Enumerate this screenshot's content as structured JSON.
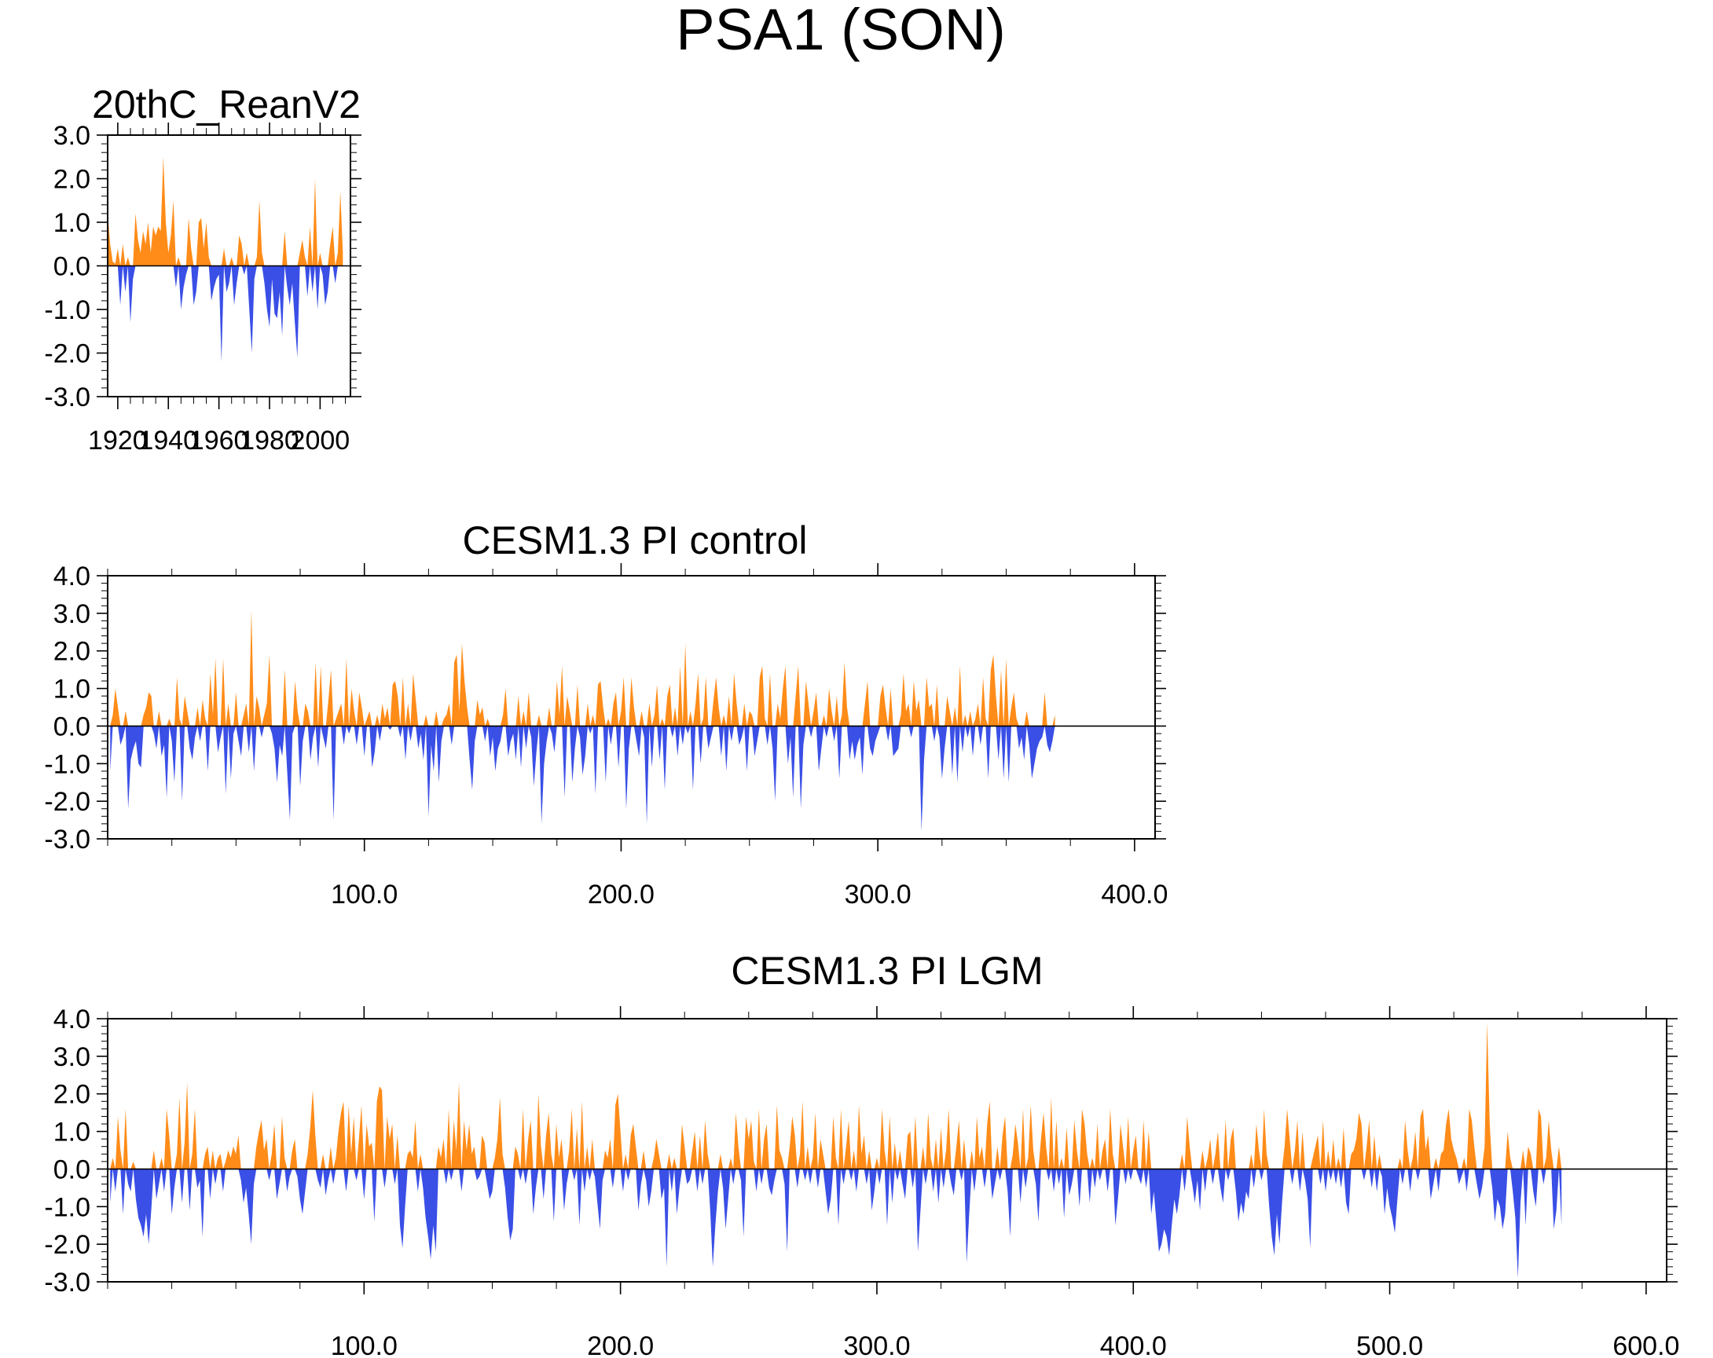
{
  "title": "PSA1 (SON)",
  "colors": {
    "positive": "#ff8c19",
    "negative": "#3a4fe6",
    "axis": "#000000"
  },
  "chart_data": [
    {
      "type": "area",
      "title": "20thC_ReanV2",
      "xlim": [
        1916,
        2012
      ],
      "ylim": [
        -3.0,
        3.0
      ],
      "xticks": [
        1920,
        1940,
        1960,
        1980,
        2000
      ],
      "xtick_labels": [
        "1920",
        "1940",
        "1960",
        "1980",
        "2000"
      ],
      "yticks": [
        -3.0,
        -2.0,
        -1.0,
        0.0,
        1.0,
        2.0,
        3.0
      ],
      "ytick_labels": [
        "-3.0",
        "-2.0",
        "-1.0",
        "0.0",
        "1.0",
        "2.0",
        "3.0"
      ],
      "x_start": 1916,
      "x_step": 1,
      "values": [
        1.2,
        0.5,
        0.1,
        0.05,
        0.4,
        -0.9,
        0.5,
        -0.6,
        0.2,
        -1.3,
        -0.3,
        1.2,
        0.6,
        0.3,
        0.8,
        0.5,
        1.0,
        0.3,
        0.9,
        0.7,
        0.9,
        0.8,
        2.5,
        1.0,
        0.3,
        0.7,
        1.5,
        -0.5,
        0.2,
        -1.0,
        -0.5,
        -0.2,
        1.1,
        0.4,
        -0.9,
        -0.6,
        1.0,
        1.1,
        0.4,
        1.0,
        0.2,
        -0.8,
        -0.5,
        -0.3,
        -0.2,
        -2.2,
        0.4,
        -0.6,
        -0.4,
        0.2,
        -0.9,
        -0.4,
        0.7,
        0.5,
        -0.2,
        0.3,
        -1.0,
        -2.0,
        -0.3,
        0.2,
        1.5,
        0.3,
        -0.4,
        -1.0,
        -1.4,
        -0.3,
        -1.1,
        -1.2,
        -0.6,
        -1.6,
        0.8,
        -0.5,
        -0.9,
        -0.4,
        -1.3,
        -2.1,
        0.3,
        0.6,
        0.2,
        -0.7,
        0.9,
        -0.6,
        2.0,
        -1.0,
        0.3,
        -0.2,
        -0.9,
        -0.6,
        0.5,
        0.9,
        -0.4,
        0.3,
        1.7,
        0.3
      ]
    },
    {
      "type": "area",
      "title": "CESM1.3 PI control",
      "xlim": [
        0,
        408
      ],
      "ylim": [
        -3.0,
        4.0
      ],
      "xticks": [
        100,
        200,
        300,
        400
      ],
      "xtick_labels": [
        "100.0",
        "200.0",
        "300.0",
        "400.0"
      ],
      "yticks": [
        -3.0,
        -2.0,
        -1.0,
        0.0,
        1.0,
        2.0,
        3.0,
        4.0
      ],
      "ytick_labels": [
        "-3.0",
        "-2.0",
        "-1.0",
        "0.0",
        "1.0",
        "2.0",
        "3.0",
        "4.0"
      ],
      "x_start": 1,
      "x_step": 1,
      "values": [
        -1.2,
        0.3,
        1.0,
        0.5,
        -0.5,
        -0.3,
        0.4,
        -2.2,
        -0.9,
        -0.6,
        -0.4,
        -1.0,
        -1.1,
        0.3,
        0.5,
        0.9,
        0.8,
        -0.2,
        -0.6,
        0.4,
        -0.8,
        -0.5,
        -1.9,
        0.2,
        -0.4,
        -1.5,
        1.3,
        0.2,
        -2.0,
        0.8,
        0.4,
        -0.6,
        -0.9,
        -0.3,
        0.5,
        -0.4,
        0.7,
        0.2,
        -1.2,
        1.4,
        0.3,
        1.8,
        -0.7,
        -0.3,
        1.8,
        -1.8,
        0.6,
        -1.4,
        -0.2,
        0.9,
        -0.4,
        -0.8,
        0.3,
        0.6,
        -0.7,
        3.1,
        -1.2,
        0.8,
        0.5,
        -0.3,
        0.3,
        0.6,
        1.9,
        -0.2,
        -0.6,
        -1.5,
        -0.5,
        -0.8,
        1.5,
        -1.3,
        -2.5,
        -0.2,
        1.2,
        0.4,
        -1.6,
        -0.4,
        0.6,
        0.4,
        -0.9,
        -0.3,
        1.7,
        -1.1,
        1.6,
        -0.3,
        -0.6,
        0.7,
        1.5,
        -2.5,
        0.2,
        0.4,
        0.6,
        -0.5,
        1.8,
        -0.2,
        1.0,
        0.4,
        -0.5,
        0.9,
        0.5,
        -0.8,
        0.2,
        0.4,
        -1.1,
        -0.7,
        0.3,
        -0.4,
        0.6,
        0.2,
        0.5,
        -0.1,
        1.1,
        1.2,
        0.8,
        -0.3,
        1.3,
        -0.9,
        0.6,
        -0.4,
        1.4,
        0.7,
        -0.6,
        -0.2,
        -0.9,
        0.3,
        -2.4,
        -0.5,
        -1.2,
        0.4,
        -1.5,
        -0.4,
        0.2,
        0.3,
        0.6,
        -0.5,
        1.7,
        1.9,
        0.4,
        2.2,
        1.2,
        0.5,
        -0.9,
        -1.7,
        -0.4,
        0.7,
        0.3,
        0.5,
        -0.4,
        0.2,
        -0.8,
        -0.3,
        -1.2,
        -0.6,
        -0.4,
        0.3,
        1.0,
        -0.8,
        -0.4,
        -0.2,
        -0.9,
        0.8,
        -1.1,
        0.4,
        -0.6,
        0.9,
        -0.3,
        -1.6,
        -0.7,
        0.3,
        -2.6,
        -1.0,
        -0.4,
        0.5,
        -0.2,
        -0.7,
        1.2,
        0.3,
        1.6,
        -1.9,
        0.8,
        0.4,
        -1.5,
        -0.6,
        1.1,
        -0.3,
        -1.3,
        -0.8,
        0.6,
        -0.2,
        0.3,
        -1.8,
        1.1,
        1.2,
        0.5,
        -1.5,
        0.2,
        -0.5,
        0.6,
        0.9,
        -1.1,
        0.4,
        1.3,
        -2.2,
        -0.6,
        1.3,
        0.5,
        -0.4,
        -0.8,
        0.4,
        -0.3,
        -2.6,
        0.6,
        -1.1,
        0.3,
        1.1,
        -0.9,
        0.2,
        -1.7,
        0.8,
        1.1,
        -0.3,
        0.5,
        -0.8,
        1.6,
        -0.5,
        2.2,
        -0.2,
        0.4,
        -1.7,
        0.6,
        1.4,
        -1.0,
        0.2,
        1.3,
        -0.6,
        -0.3,
        0.7,
        1.3,
        0.5,
        -0.8,
        0.3,
        -1.2,
        0.8,
        -0.4,
        1.4,
        0.6,
        -0.5,
        -0.3,
        0.6,
        -1.2,
        0.4,
        0.3,
        -0.8,
        -0.4,
        1.3,
        1.6,
        0.2,
        -0.5,
        1.4,
        -0.6,
        -2.0,
        0.6,
        0.2,
        1.0,
        1.6,
        -1.0,
        -0.3,
        -1.9,
        0.8,
        1.6,
        -2.2,
        -0.5,
        1.2,
        0.6,
        -0.3,
        0.4,
        0.9,
        -1.2,
        -0.6,
        0.3,
        -0.3,
        1.0,
        0.4,
        -0.4,
        0.8,
        -1.4,
        0.3,
        1.7,
        0.5,
        -0.9,
        -0.4,
        -0.9,
        -0.5,
        -0.3,
        -1.3,
        0.6,
        1.2,
        -0.6,
        -0.8,
        -0.4,
        -0.2,
        0.8,
        1.1,
        0.5,
        -0.4,
        1.0,
        -0.8,
        -0.7,
        -0.6,
        0.3,
        1.4,
        0.4,
        0.6,
        -0.3,
        1.2,
        0.4,
        0.7,
        -2.8,
        -0.9,
        1.3,
        0.5,
        0.6,
        -0.4,
        1.1,
        -0.3,
        -1.4,
        -0.6,
        0.8,
        0.4,
        -1.3,
        0.5,
        -1.5,
        1.6,
        -0.7,
        0.3,
        -0.3,
        0.4,
        -0.8,
        0.2,
        0.6,
        -0.5,
        1.3,
        0.2,
        -1.4,
        1.5,
        1.9,
        0.8,
        -0.9,
        1.5,
        -1.4,
        1.8,
        -1.5,
        0.5,
        0.9,
        0.2,
        -0.6,
        -0.3,
        -0.9,
        0.4,
        -0.5,
        -1.4,
        -1.0,
        -0.6,
        -0.4,
        -0.3,
        0.9,
        -0.5,
        -0.7,
        -0.4,
        0.3
      ]
    },
    {
      "type": "area",
      "title": "CESM1.3 PI LGM",
      "xlim": [
        0,
        608
      ],
      "ylim": [
        -3.0,
        4.0
      ],
      "xticks": [
        100,
        200,
        300,
        400,
        500,
        600
      ],
      "xtick_labels": [
        "100.0",
        "200.0",
        "300.0",
        "400.0",
        "500.0",
        "600.0"
      ],
      "yticks": [
        -3.0,
        -2.0,
        -1.0,
        0.0,
        1.0,
        2.0,
        3.0,
        4.0
      ],
      "ytick_labels": [
        "-3.0",
        "-2.0",
        "-1.0",
        "0.0",
        "1.0",
        "2.0",
        "3.0",
        "4.0"
      ],
      "x_start": 1,
      "x_step": 1,
      "values": [
        -0.9,
        0.3,
        -0.6,
        1.4,
        0.5,
        -1.2,
        1.6,
        -0.4,
        -0.6,
        0.2,
        -0.8,
        -1.3,
        -1.5,
        -1.8,
        -1.2,
        -2.0,
        -1.1,
        0.5,
        -0.8,
        -0.4,
        0.3,
        -0.6,
        1.6,
        0.9,
        -1.2,
        -0.5,
        0.4,
        1.9,
        -0.9,
        0.7,
        2.3,
        -1.1,
        0.4,
        1.6,
        -0.5,
        -0.3,
        -1.8,
        0.4,
        0.6,
        -0.8,
        0.5,
        -0.4,
        0.3,
        0.4,
        -0.6,
        0.2,
        0.5,
        0.3,
        0.6,
        0.4,
        0.9,
        -0.3,
        -0.9,
        -0.5,
        -1.2,
        -2.0,
        -0.4,
        0.6,
        1.0,
        1.3,
        0.5,
        0.8,
        -0.3,
        0.4,
        1.2,
        -0.8,
        -0.4,
        1.4,
        0.3,
        -0.6,
        -0.2,
        0.5,
        0.8,
        -0.2,
        -0.8,
        -1.2,
        -0.6,
        0.4,
        1.1,
        2.1,
        0.9,
        -0.3,
        -0.5,
        0.4,
        -0.7,
        -0.3,
        0.6,
        -0.4,
        0.3,
        1.0,
        1.5,
        1.8,
        -0.6,
        1.7,
        0.4,
        1.4,
        -0.3,
        0.8,
        1.7,
        -0.8,
        1.2,
        0.6,
        0.7,
        -1.4,
        1.8,
        2.2,
        2.1,
        -0.5,
        1.4,
        0.8,
        1.2,
        -0.4,
        0.9,
        -1.5,
        -2.1,
        -1.0,
        0.4,
        0.5,
        0.3,
        1.3,
        -0.6,
        0.4,
        -0.5,
        -1.3,
        -1.8,
        -2.4,
        -1.5,
        -2.2,
        0.6,
        0.3,
        0.8,
        -0.4,
        1.6,
        -0.3,
        1.3,
        0.5,
        2.3,
        -0.6,
        1.3,
        0.5,
        1.2,
        0.4,
        0.6,
        -0.3,
        -0.2,
        0.9,
        0.7,
        -0.4,
        -0.8,
        -0.6,
        0.3,
        0.8,
        1.9,
        0.4,
        -0.5,
        -1.3,
        -1.9,
        -1.6,
        0.6,
        0.4,
        -0.3,
        1.6,
        -0.4,
        0.8,
        1.3,
        -1.2,
        -0.5,
        2.0,
        0.6,
        -0.8,
        0.9,
        1.5,
        0.4,
        -1.4,
        1.2,
        0.3,
        0.8,
        -1.1,
        -0.4,
        0.5,
        1.6,
        -0.3,
        1.1,
        -1.5,
        1.8,
        -0.6,
        0.6,
        -0.3,
        0.8,
        -0.2,
        -0.9,
        -1.6,
        -0.3,
        0.5,
        0.3,
        0.8,
        -0.5,
        1.7,
        2.0,
        1.0,
        -0.6,
        0.4,
        -0.3,
        0.9,
        1.2,
        0.6,
        -1.1,
        -0.4,
        0.5,
        -0.3,
        -1.0,
        -0.6,
        0.3,
        0.8,
        0.4,
        -0.8,
        -0.5,
        -2.6,
        0.4,
        -0.6,
        0.3,
        -1.2,
        -0.5,
        1.2,
        0.6,
        -0.4,
        -0.3,
        0.5,
        1.0,
        -0.6,
        0.9,
        -0.4,
        1.3,
        0.4,
        -1.1,
        -2.6,
        -1.5,
        -0.6,
        0.4,
        -0.5,
        -1.6,
        -0.8,
        0.3,
        -0.4,
        1.5,
        0.6,
        -0.3,
        -1.8,
        1.4,
        0.8,
        1.3,
        0.2,
        -0.6,
        1.6,
        -0.4,
        0.8,
        1.2,
        -0.5,
        -0.7,
        -0.3,
        1.7,
        0.5,
        0.3,
        -0.4,
        -2.2,
        0.6,
        1.4,
        0.9,
        -0.5,
        0.4,
        1.8,
        -0.3,
        0.6,
        -0.4,
        0.3,
        1.5,
        -0.5,
        0.8,
        0.4,
        -0.6,
        -1.2,
        -0.8,
        1.4,
        0.3,
        -1.5,
        1.6,
        -0.4,
        0.6,
        1.3,
        -0.3,
        0.5,
        -0.6,
        1.7,
        0.4,
        0.9,
        -0.4,
        0.5,
        -1.1,
        -0.6,
        0.3,
        -0.4,
        1.6,
        0.5,
        -1.5,
        1.4,
        -0.9,
        0.7,
        -0.3,
        0.5,
        -0.4,
        -0.8,
        0.9,
        1.0,
        -0.5,
        1.4,
        -2.2,
        -1.1,
        0.6,
        -0.4,
        1.5,
        0.3,
        -0.6,
        0.8,
        -0.9,
        1.1,
        -0.5,
        0.5,
        1.6,
        -0.4,
        -0.7,
        0.6,
        1.3,
        -0.3,
        0.8,
        -2.5,
        -1.2,
        0.5,
        -0.6,
        1.4,
        0.3,
        0.6,
        -0.5,
        1.2,
        1.8,
        -0.8,
        -0.4,
        0.6,
        -0.3,
        0.9,
        1.4,
        -0.6,
        -1.8,
        0.4,
        1.2,
        0.7,
        -0.9,
        1.6,
        -0.5,
        0.3,
        1.7,
        0.5,
        -0.4,
        -1.4,
        0.8,
        1.5,
        0.6,
        -0.3,
        1.9,
        -0.6,
        1.3,
        -0.4,
        0.3,
        -1.3,
        1.1,
        -0.7,
        -0.4,
        1.3,
        0.5,
        -1.0,
        1.6,
        1.2,
        0.4,
        -0.9,
        0.3,
        -0.5,
        1.2,
        -0.3,
        0.5,
        0.8,
        -0.6,
        1.6,
        0.4,
        -1.5,
        -0.8,
        1.2,
        0.6,
        -0.4,
        1.4,
        -0.3,
        0.5,
        0.9,
        -0.2,
        -0.4,
        1.3,
        -0.5,
        1.0,
        -1.2,
        -0.6,
        -1.4,
        -2.2,
        -2.0,
        -1.6,
        -1.8,
        -2.3,
        -1.5,
        -0.8,
        -1.2,
        -0.7,
        0.4,
        -0.6,
        1.4,
        0.6,
        -0.4,
        -0.9,
        -0.3,
        -1.1,
        0.5,
        -0.6,
        0.3,
        0.8,
        -0.4,
        0.4,
        1.0,
        -0.5,
        -0.9,
        1.3,
        -0.3,
        0.8,
        1.1,
        -0.6,
        -1.4,
        -0.9,
        -1.2,
        -0.6,
        -0.8,
        0.4,
        -0.5,
        1.2,
        0.5,
        -0.3,
        1.6,
        0.4,
        -1.0,
        -1.8,
        -2.3,
        -1.2,
        -2.0,
        -0.9,
        0.6,
        1.6,
        0.8,
        -0.4,
        0.5,
        1.3,
        -0.6,
        1.0,
        -0.3,
        -0.8,
        -2.1,
        0.3,
        0.6,
        0.9,
        -0.4,
        1.3,
        -0.6,
        0.5,
        -0.3,
        0.8,
        -0.4,
        0.3,
        -0.5,
        1.1,
        -0.9,
        -1.2,
        0.4,
        0.5,
        0.8,
        1.5,
        1.2,
        -0.3,
        0.6,
        1.3,
        -0.5,
        0.9,
        -0.6,
        0.4,
        -0.2,
        -1.2,
        -0.5,
        -1.0,
        -1.3,
        -1.7,
        -0.8,
        0.3,
        -0.4,
        1.3,
        0.5,
        -0.6,
        0.3,
        1.0,
        -0.3,
        1.4,
        1.6,
        0.5,
        0.9,
        -0.8,
        -0.4,
        0.3,
        -0.6,
        0.4,
        0.5,
        1.2,
        1.6,
        0.8,
        0.5,
        0.3,
        -0.4,
        -0.2,
        0.3,
        -0.6,
        1.6,
        1.3,
        0.6,
        -0.4,
        -0.8,
        -0.5,
        0.6,
        3.9,
        1.2,
        -0.5,
        -1.4,
        -0.8,
        -1.0,
        -1.6,
        -1.2,
        1.0,
        0.3,
        -0.6,
        -1.3,
        -2.9,
        -0.9,
        0.5,
        -1.5,
        0.6,
        0.4,
        -0.6,
        -1.0,
        1.6,
        1.4,
        -0.4,
        0.3,
        1.3,
        0.5,
        -1.6,
        -1.1,
        0.6,
        -1.5
      ]
    }
  ]
}
